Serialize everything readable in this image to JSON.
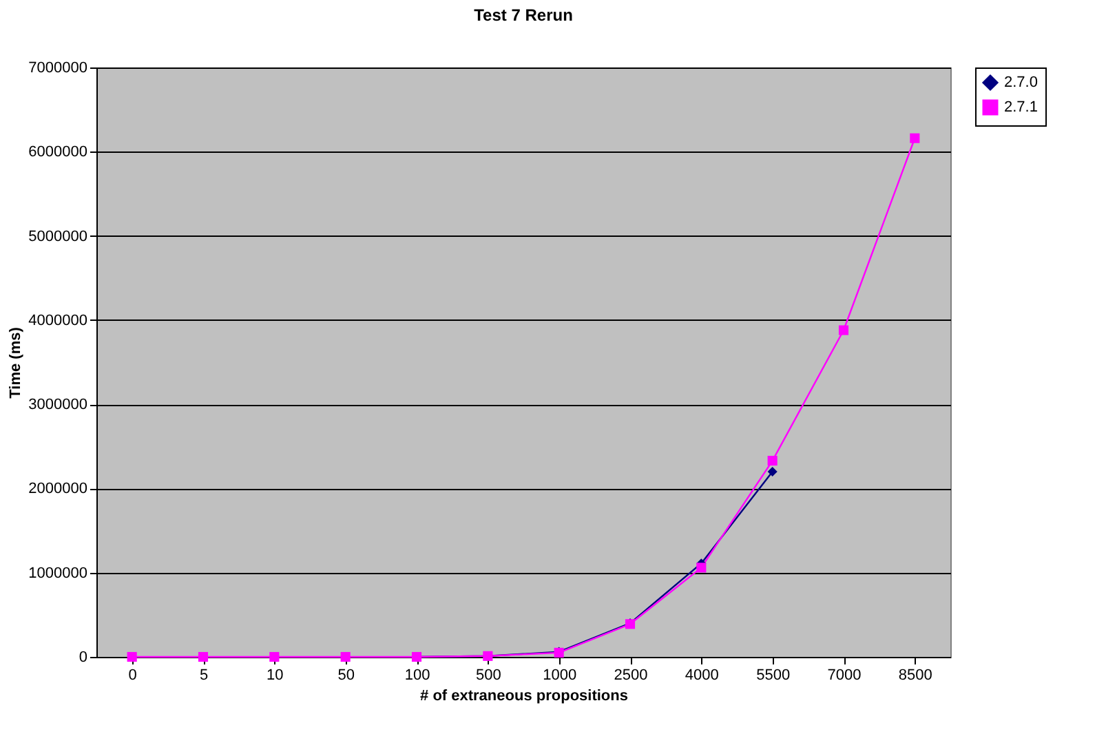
{
  "chart_data": {
    "type": "line",
    "title": "Test 7 Rerun",
    "xlabel": "# of extraneous propositions",
    "ylabel": "Time (ms)",
    "categories": [
      "0",
      "5",
      "10",
      "50",
      "100",
      "500",
      "1000",
      "2500",
      "4000",
      "5500",
      "7000",
      "8500"
    ],
    "series": [
      {
        "name": "2.7.0",
        "color": "#000080",
        "marker": "diamond",
        "values": [
          null,
          null,
          null,
          null,
          0,
          10000,
          60000,
          400000,
          1110000,
          2200000,
          null,
          null
        ]
      },
      {
        "name": "2.7.1",
        "color": "#ff00ff",
        "marker": "square",
        "values": [
          0,
          0,
          0,
          0,
          0,
          10000,
          50000,
          390000,
          1060000,
          2330000,
          3880000,
          6160000
        ]
      }
    ],
    "ylim": [
      0,
      7000000
    ],
    "yticks": [
      0,
      1000000,
      2000000,
      3000000,
      4000000,
      5000000,
      6000000,
      7000000
    ],
    "grid": "y",
    "legend": "right",
    "line_style": "solid"
  }
}
